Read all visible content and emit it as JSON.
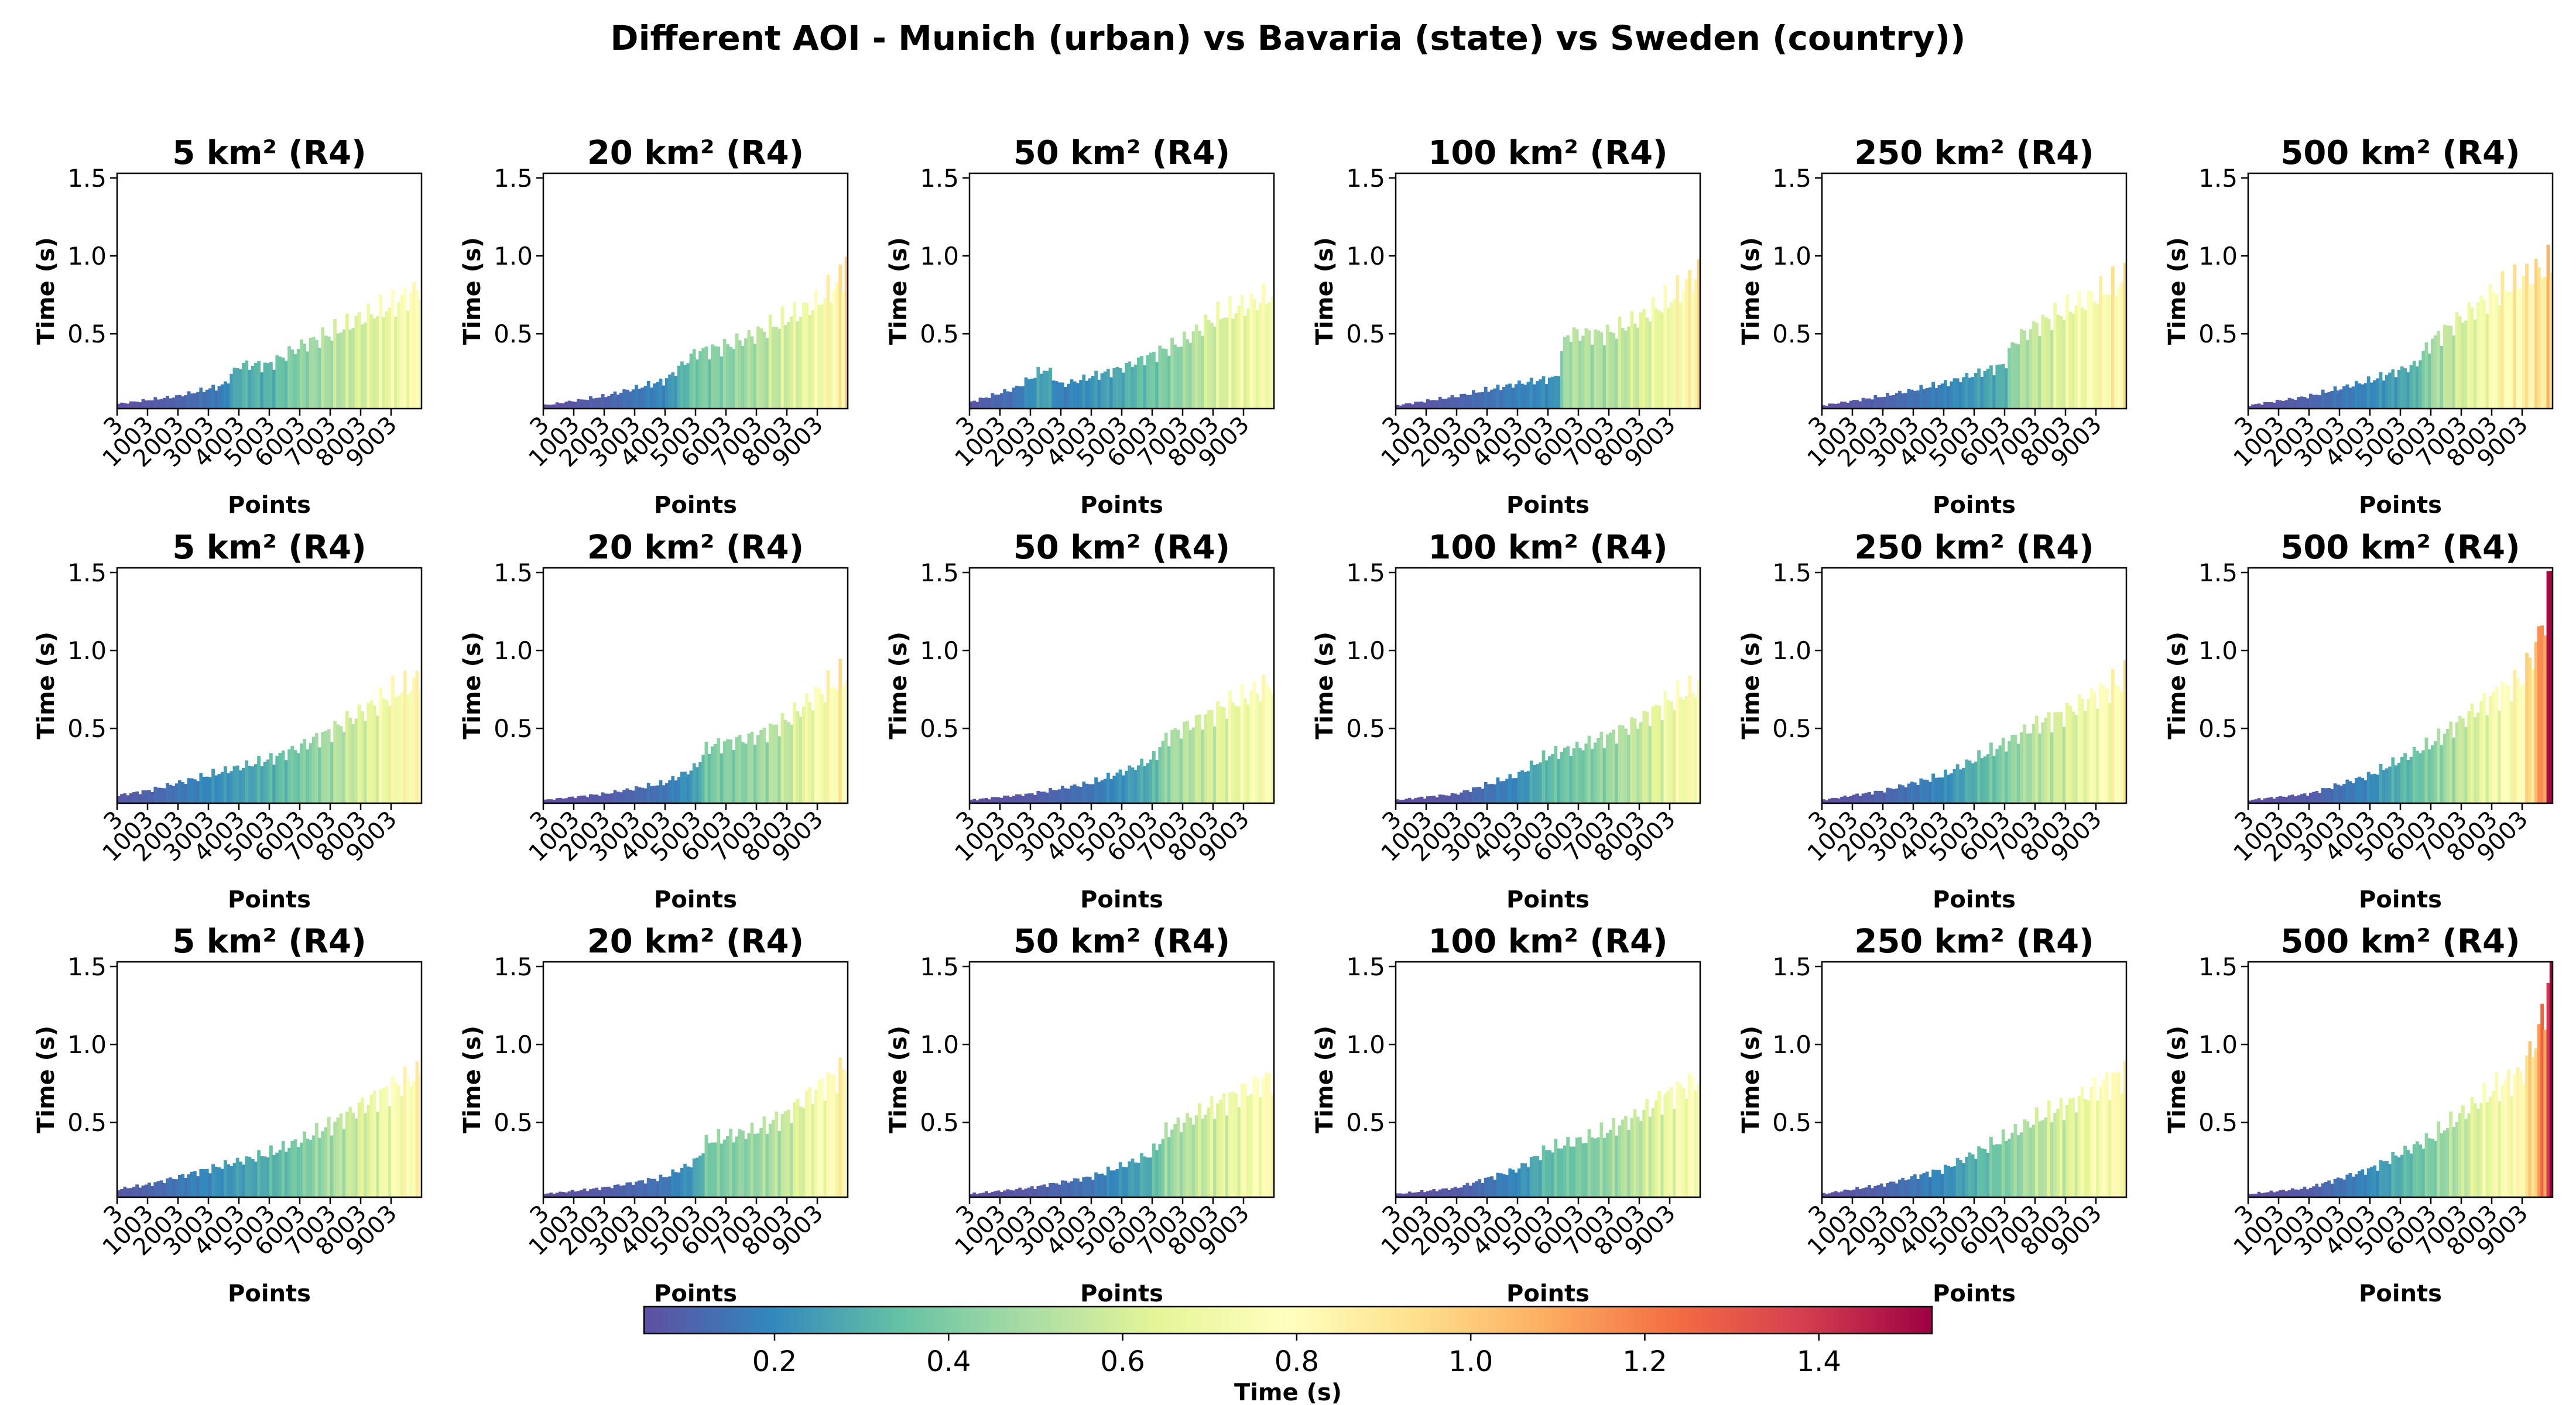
{
  "title": "Different AOI - Munich (urban) vs Bavaria (state) vs Sweden (country))",
  "axes_labels": {
    "xlabel": "Points",
    "ylabel": "Time (s)"
  },
  "colorbar": {
    "label": "Time (s)",
    "ticks": [
      "0.2",
      "0.4",
      "0.6",
      "0.8",
      "1.0",
      "1.2",
      "1.4"
    ],
    "range": [
      0.05,
      1.53
    ],
    "colormap": "Spectral_r"
  },
  "chart_data": [
    {
      "type": "bar",
      "title": "5 km² (R4)",
      "xlabel": "Points",
      "ylabel": "Time (s)",
      "ylim": [
        0.02,
        1.53
      ],
      "yticks": [
        "0.5",
        "1.0",
        "1.5"
      ],
      "xticks": [
        "3",
        "1003",
        "2003",
        "3003",
        "4003",
        "5003",
        "6003",
        "7003",
        "8003",
        "9003"
      ],
      "x": [
        3,
        10003
      ],
      "anchors": [
        [
          3,
          0.05
        ],
        [
          2000,
          0.1
        ],
        [
          3500,
          0.17
        ],
        [
          4003,
          0.3
        ],
        [
          5003,
          0.3
        ],
        [
          6003,
          0.42
        ],
        [
          7003,
          0.5
        ],
        [
          8003,
          0.6
        ],
        [
          9003,
          0.68
        ],
        [
          10003,
          0.8
        ]
      ]
    },
    {
      "type": "bar",
      "title": "20 km² (R4)",
      "xlabel": "Points",
      "ylabel": "Time (s)",
      "ylim": [
        0.02,
        1.53
      ],
      "yticks": [
        "0.5",
        "1.0",
        "1.5"
      ],
      "xticks": [
        "3",
        "1003",
        "2003",
        "3003",
        "4003",
        "5003",
        "6003",
        "7003",
        "8003",
        "9003"
      ],
      "x": [
        3,
        10003
      ],
      "anchors": [
        [
          3,
          0.04
        ],
        [
          2003,
          0.1
        ],
        [
          4003,
          0.2
        ],
        [
          5003,
          0.38
        ],
        [
          6003,
          0.42
        ],
        [
          7003,
          0.5
        ],
        [
          8003,
          0.6
        ],
        [
          9003,
          0.7
        ],
        [
          9800,
          0.85
        ],
        [
          10003,
          1.03
        ]
      ]
    },
    {
      "type": "bar",
      "title": "50 km² (R4)",
      "xlabel": "Points",
      "ylabel": "Time (s)",
      "ylim": [
        0.02,
        1.53
      ],
      "yticks": [
        "0.5",
        "1.0",
        "1.5"
      ],
      "xticks": [
        "3",
        "1003",
        "2003",
        "3003",
        "4003",
        "5003",
        "6003",
        "7003",
        "8003",
        "9003"
      ],
      "x": [
        3,
        10003
      ],
      "anchors": [
        [
          3,
          0.06
        ],
        [
          1500,
          0.15
        ],
        [
          2500,
          0.28
        ],
        [
          3003,
          0.17
        ],
        [
          5003,
          0.28
        ],
        [
          7003,
          0.45
        ],
        [
          8003,
          0.6
        ],
        [
          9003,
          0.68
        ],
        [
          10003,
          0.75
        ]
      ]
    },
    {
      "type": "bar",
      "title": "100 km² (R4)",
      "xlabel": "Points",
      "ylabel": "Time (s)",
      "ylim": [
        0.02,
        1.53
      ],
      "yticks": [
        "0.5",
        "1.0",
        "1.5"
      ],
      "xticks": [
        "3",
        "1003",
        "2003",
        "3003",
        "4003",
        "5003",
        "6003",
        "7003",
        "8003",
        "9003"
      ],
      "x": [
        3,
        10003
      ],
      "anchors": [
        [
          3,
          0.04
        ],
        [
          2003,
          0.1
        ],
        [
          4003,
          0.18
        ],
        [
          5300,
          0.22
        ],
        [
          5600,
          0.5
        ],
        [
          7003,
          0.5
        ],
        [
          8003,
          0.6
        ],
        [
          9003,
          0.72
        ],
        [
          10003,
          0.9
        ]
      ]
    },
    {
      "type": "bar",
      "title": "250 km² (R4)",
      "xlabel": "Points",
      "ylabel": "Time (s)",
      "ylim": [
        0.02,
        1.53
      ],
      "yticks": [
        "0.5",
        "1.0",
        "1.5"
      ],
      "xticks": [
        "3",
        "1003",
        "2003",
        "3003",
        "4003",
        "5003",
        "6003",
        "7003",
        "8003",
        "9003"
      ],
      "x": [
        3,
        10003
      ],
      "anchors": [
        [
          3,
          0.04
        ],
        [
          2003,
          0.1
        ],
        [
          4003,
          0.18
        ],
        [
          6003,
          0.3
        ],
        [
          6300,
          0.45
        ],
        [
          7003,
          0.55
        ],
        [
          8003,
          0.65
        ],
        [
          9003,
          0.75
        ],
        [
          10003,
          0.85
        ]
      ]
    },
    {
      "type": "bar",
      "title": "500 km² (R4)",
      "xlabel": "Points",
      "ylabel": "Time (s)",
      "ylim": [
        0.02,
        1.53
      ],
      "yticks": [
        "0.5",
        "1.0",
        "1.5"
      ],
      "xticks": [
        "3",
        "1003",
        "2003",
        "3003",
        "4003",
        "5003",
        "6003",
        "7003",
        "8003",
        "9003"
      ],
      "x": [
        3,
        10003
      ],
      "anchors": [
        [
          3,
          0.04
        ],
        [
          2003,
          0.1
        ],
        [
          4003,
          0.2
        ],
        [
          5500,
          0.3
        ],
        [
          6003,
          0.45
        ],
        [
          7003,
          0.6
        ],
        [
          8003,
          0.75
        ],
        [
          9003,
          0.85
        ],
        [
          10003,
          0.95
        ]
      ]
    },
    {
      "type": "bar",
      "title": "5 km² (R4)",
      "xlabel": "Points",
      "ylabel": "Time (s)",
      "ylim": [
        0.02,
        1.53
      ],
      "yticks": [
        "0.5",
        "1.0",
        "1.5"
      ],
      "xticks": [
        "3",
        "1003",
        "2003",
        "3003",
        "4003",
        "5003",
        "6003",
        "7003",
        "8003",
        "9003"
      ],
      "x": [
        3,
        10003
      ],
      "anchors": [
        [
          3,
          0.07
        ],
        [
          1003,
          0.1
        ],
        [
          3003,
          0.2
        ],
        [
          5003,
          0.3
        ],
        [
          6003,
          0.38
        ],
        [
          7003,
          0.48
        ],
        [
          8003,
          0.6
        ],
        [
          9003,
          0.72
        ],
        [
          10003,
          0.82
        ]
      ]
    },
    {
      "type": "bar",
      "title": "20 km² (R4)",
      "xlabel": "Points",
      "ylabel": "Time (s)",
      "ylim": [
        0.02,
        1.53
      ],
      "yticks": [
        "0.5",
        "1.0",
        "1.5"
      ],
      "xticks": [
        "3",
        "1003",
        "2003",
        "3003",
        "4003",
        "5003",
        "6003",
        "7003",
        "8003",
        "9003"
      ],
      "x": [
        3,
        10003
      ],
      "anchors": [
        [
          3,
          0.04
        ],
        [
          2003,
          0.08
        ],
        [
          4003,
          0.15
        ],
        [
          5003,
          0.25
        ],
        [
          5400,
          0.38
        ],
        [
          7003,
          0.45
        ],
        [
          8003,
          0.55
        ],
        [
          9003,
          0.72
        ],
        [
          10003,
          0.85
        ]
      ]
    },
    {
      "type": "bar",
      "title": "50 km² (R4)",
      "xlabel": "Points",
      "ylabel": "Time (s)",
      "ylim": [
        0.02,
        1.53
      ],
      "yticks": [
        "0.5",
        "1.0",
        "1.5"
      ],
      "xticks": [
        "3",
        "1003",
        "2003",
        "3003",
        "4003",
        "5003",
        "6003",
        "7003",
        "8003",
        "9003"
      ],
      "x": [
        3,
        10003
      ],
      "anchors": [
        [
          3,
          0.04
        ],
        [
          2003,
          0.08
        ],
        [
          4003,
          0.15
        ],
        [
          5003,
          0.22
        ],
        [
          6003,
          0.3
        ],
        [
          6500,
          0.45
        ],
        [
          8003,
          0.6
        ],
        [
          9003,
          0.7
        ],
        [
          10003,
          0.8
        ]
      ]
    },
    {
      "type": "bar",
      "title": "100 km² (R4)",
      "xlabel": "Points",
      "ylabel": "Time (s)",
      "ylim": [
        0.02,
        1.53
      ],
      "yticks": [
        "0.5",
        "1.0",
        "1.5"
      ],
      "xticks": [
        "3",
        "1003",
        "2003",
        "3003",
        "4003",
        "5003",
        "6003",
        "7003",
        "8003",
        "9003"
      ],
      "x": [
        3,
        10003
      ],
      "anchors": [
        [
          3,
          0.04
        ],
        [
          2003,
          0.08
        ],
        [
          4003,
          0.2
        ],
        [
          5003,
          0.33
        ],
        [
          6003,
          0.38
        ],
        [
          7003,
          0.45
        ],
        [
          8003,
          0.55
        ],
        [
          9003,
          0.68
        ],
        [
          10003,
          0.78
        ]
      ]
    },
    {
      "type": "bar",
      "title": "250 km² (R4)",
      "xlabel": "Points",
      "ylabel": "Time (s)",
      "ylim": [
        0.02,
        1.53
      ],
      "yticks": [
        "0.5",
        "1.0",
        "1.5"
      ],
      "xticks": [
        "3",
        "1003",
        "2003",
        "3003",
        "4003",
        "5003",
        "6003",
        "7003",
        "8003",
        "9003"
      ],
      "x": [
        3,
        10003
      ],
      "anchors": [
        [
          3,
          0.04
        ],
        [
          2003,
          0.1
        ],
        [
          4003,
          0.2
        ],
        [
          5003,
          0.3
        ],
        [
          6003,
          0.4
        ],
        [
          7003,
          0.52
        ],
        [
          8003,
          0.6
        ],
        [
          9003,
          0.72
        ],
        [
          10003,
          0.82
        ]
      ]
    },
    {
      "type": "bar",
      "title": "500 km² (R4)",
      "xlabel": "Points",
      "ylabel": "Time (s)",
      "ylim": [
        0.02,
        1.53
      ],
      "yticks": [
        "0.5",
        "1.0",
        "1.5"
      ],
      "xticks": [
        "3",
        "1003",
        "2003",
        "3003",
        "4003",
        "5003",
        "6003",
        "7003",
        "8003",
        "9003"
      ],
      "x": [
        3,
        10003
      ],
      "anchors": [
        [
          3,
          0.04
        ],
        [
          2003,
          0.08
        ],
        [
          4003,
          0.2
        ],
        [
          5003,
          0.3
        ],
        [
          6003,
          0.4
        ],
        [
          7003,
          0.55
        ],
        [
          8003,
          0.7
        ],
        [
          9003,
          0.82
        ],
        [
          9600,
          1.1
        ],
        [
          10003,
          1.53
        ]
      ]
    },
    {
      "type": "bar",
      "title": "5 km² (R4)",
      "xlabel": "Points",
      "ylabel": "Time (s)",
      "ylim": [
        0.02,
        1.53
      ],
      "yticks": [
        "0.5",
        "1.0",
        "1.5"
      ],
      "xticks": [
        "3",
        "1003",
        "2003",
        "3003",
        "4003",
        "5003",
        "6003",
        "7003",
        "8003",
        "9003"
      ],
      "x": [
        3,
        10003
      ],
      "anchors": [
        [
          3,
          0.07
        ],
        [
          1003,
          0.1
        ],
        [
          3003,
          0.2
        ],
        [
          5003,
          0.3
        ],
        [
          6003,
          0.38
        ],
        [
          7003,
          0.48
        ],
        [
          8003,
          0.6
        ],
        [
          9003,
          0.72
        ],
        [
          10003,
          0.82
        ]
      ]
    },
    {
      "type": "bar",
      "title": "20 km² (R4)",
      "xlabel": "Points",
      "ylabel": "Time (s)",
      "ylim": [
        0.02,
        1.53
      ],
      "yticks": [
        "0.5",
        "1.0",
        "1.5"
      ],
      "xticks": [
        "3",
        "1003",
        "2003",
        "3003",
        "4003",
        "5003",
        "6003",
        "7003",
        "8003",
        "9003"
      ],
      "x": [
        3,
        10003
      ],
      "anchors": [
        [
          3,
          0.04
        ],
        [
          2003,
          0.08
        ],
        [
          4003,
          0.15
        ],
        [
          5003,
          0.25
        ],
        [
          5400,
          0.38
        ],
        [
          7003,
          0.45
        ],
        [
          8003,
          0.55
        ],
        [
          9003,
          0.72
        ],
        [
          10003,
          0.85
        ]
      ]
    },
    {
      "type": "bar",
      "title": "50 km² (R4)",
      "xlabel": "Points",
      "ylabel": "Time (s)",
      "ylim": [
        0.02,
        1.53
      ],
      "yticks": [
        "0.5",
        "1.0",
        "1.5"
      ],
      "xticks": [
        "3",
        "1003",
        "2003",
        "3003",
        "4003",
        "5003",
        "6003",
        "7003",
        "8003",
        "9003"
      ],
      "x": [
        3,
        10003
      ],
      "anchors": [
        [
          3,
          0.04
        ],
        [
          2003,
          0.08
        ],
        [
          4003,
          0.15
        ],
        [
          5003,
          0.22
        ],
        [
          6003,
          0.3
        ],
        [
          6500,
          0.45
        ],
        [
          8003,
          0.6
        ],
        [
          9003,
          0.7
        ],
        [
          10003,
          0.8
        ]
      ]
    },
    {
      "type": "bar",
      "title": "100 km² (R4)",
      "xlabel": "Points",
      "ylabel": "Time (s)",
      "ylim": [
        0.02,
        1.53
      ],
      "yticks": [
        "0.5",
        "1.0",
        "1.5"
      ],
      "xticks": [
        "3",
        "1003",
        "2003",
        "3003",
        "4003",
        "5003",
        "6003",
        "7003",
        "8003",
        "9003"
      ],
      "x": [
        3,
        10003
      ],
      "anchors": [
        [
          3,
          0.04
        ],
        [
          2003,
          0.08
        ],
        [
          4003,
          0.2
        ],
        [
          5003,
          0.33
        ],
        [
          6003,
          0.38
        ],
        [
          7003,
          0.45
        ],
        [
          8003,
          0.55
        ],
        [
          9003,
          0.68
        ],
        [
          10003,
          0.78
        ]
      ]
    },
    {
      "type": "bar",
      "title": "250 km² (R4)",
      "xlabel": "Points",
      "ylabel": "Time (s)",
      "ylim": [
        0.02,
        1.53
      ],
      "yticks": [
        "0.5",
        "1.0",
        "1.5"
      ],
      "xticks": [
        "3",
        "1003",
        "2003",
        "3003",
        "4003",
        "5003",
        "6003",
        "7003",
        "8003",
        "9003"
      ],
      "x": [
        3,
        10003
      ],
      "anchors": [
        [
          3,
          0.04
        ],
        [
          2003,
          0.1
        ],
        [
          4003,
          0.2
        ],
        [
          5003,
          0.3
        ],
        [
          6003,
          0.4
        ],
        [
          7003,
          0.52
        ],
        [
          8003,
          0.6
        ],
        [
          9003,
          0.72
        ],
        [
          10003,
          0.82
        ]
      ]
    },
    {
      "type": "bar",
      "title": "500 km² (R4)",
      "xlabel": "Points",
      "ylabel": "Time (s)",
      "ylim": [
        0.02,
        1.53
      ],
      "yticks": [
        "0.5",
        "1.0",
        "1.5"
      ],
      "xticks": [
        "3",
        "1003",
        "2003",
        "3003",
        "4003",
        "5003",
        "6003",
        "7003",
        "8003",
        "9003"
      ],
      "x": [
        3,
        10003
      ],
      "anchors": [
        [
          3,
          0.04
        ],
        [
          2003,
          0.08
        ],
        [
          4003,
          0.2
        ],
        [
          5003,
          0.3
        ],
        [
          6003,
          0.4
        ],
        [
          7003,
          0.55
        ],
        [
          8003,
          0.7
        ],
        [
          9003,
          0.82
        ],
        [
          9600,
          1.1
        ],
        [
          10003,
          1.53
        ]
      ]
    }
  ]
}
